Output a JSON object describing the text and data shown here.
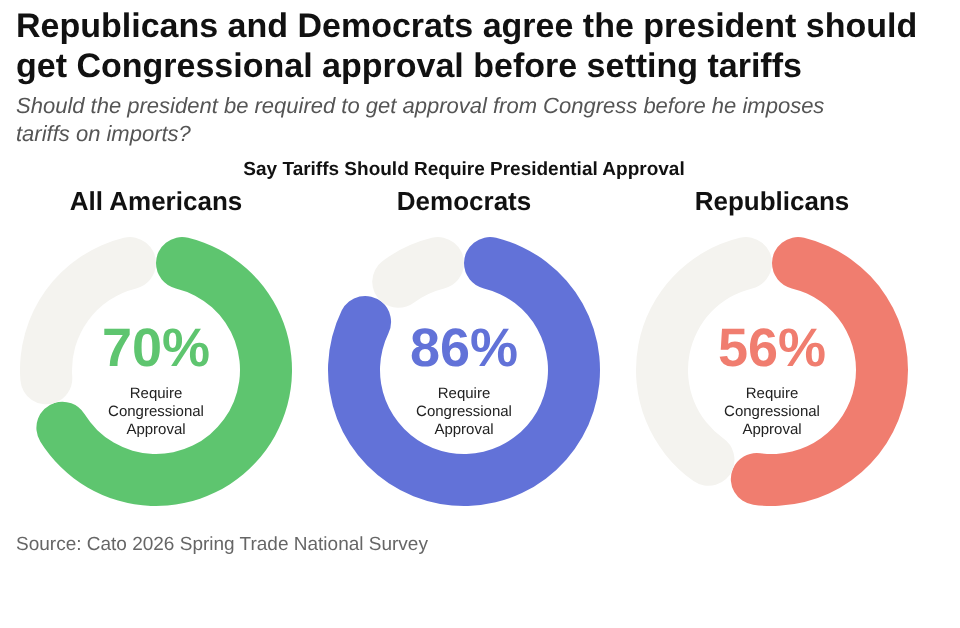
{
  "chart_data": [
    {
      "type": "other",
      "title": "Republicans and Democrats agree the president should get Congressional approval before setting tariffs",
      "subtitle": "Should the president be required to get approval from Congress before he imposes tariffs on imports?",
      "annotations": [
        "Say Tariffs Should Require Presidential Approval",
        "Source: Cato 2026 Spring Trade National Survey"
      ]
    },
    {
      "type": "donut",
      "title": "All Americans",
      "categories": [
        "Require Congressional Approval",
        null
      ],
      "values": [
        70,
        30
      ],
      "colors": [
        "#5ec56f",
        "#f4f3ef"
      ],
      "value_labels": [
        "70%",
        null
      ],
      "legend": false
    },
    {
      "type": "donut",
      "title": "Democrats",
      "categories": [
        "Require Congressional Approval",
        null
      ],
      "values": [
        86,
        14
      ],
      "colors": [
        "#6272d8",
        "#f4f3ef"
      ],
      "value_labels": [
        "86%",
        null
      ],
      "legend": false
    },
    {
      "type": "donut",
      "title": "Republicans",
      "categories": [
        "Require Congressional Approval",
        null
      ],
      "values": [
        56,
        44
      ],
      "colors": [
        "#f07d6f",
        "#f4f3ef"
      ],
      "value_labels": [
        "56%",
        null
      ],
      "legend": false
    }
  ]
}
